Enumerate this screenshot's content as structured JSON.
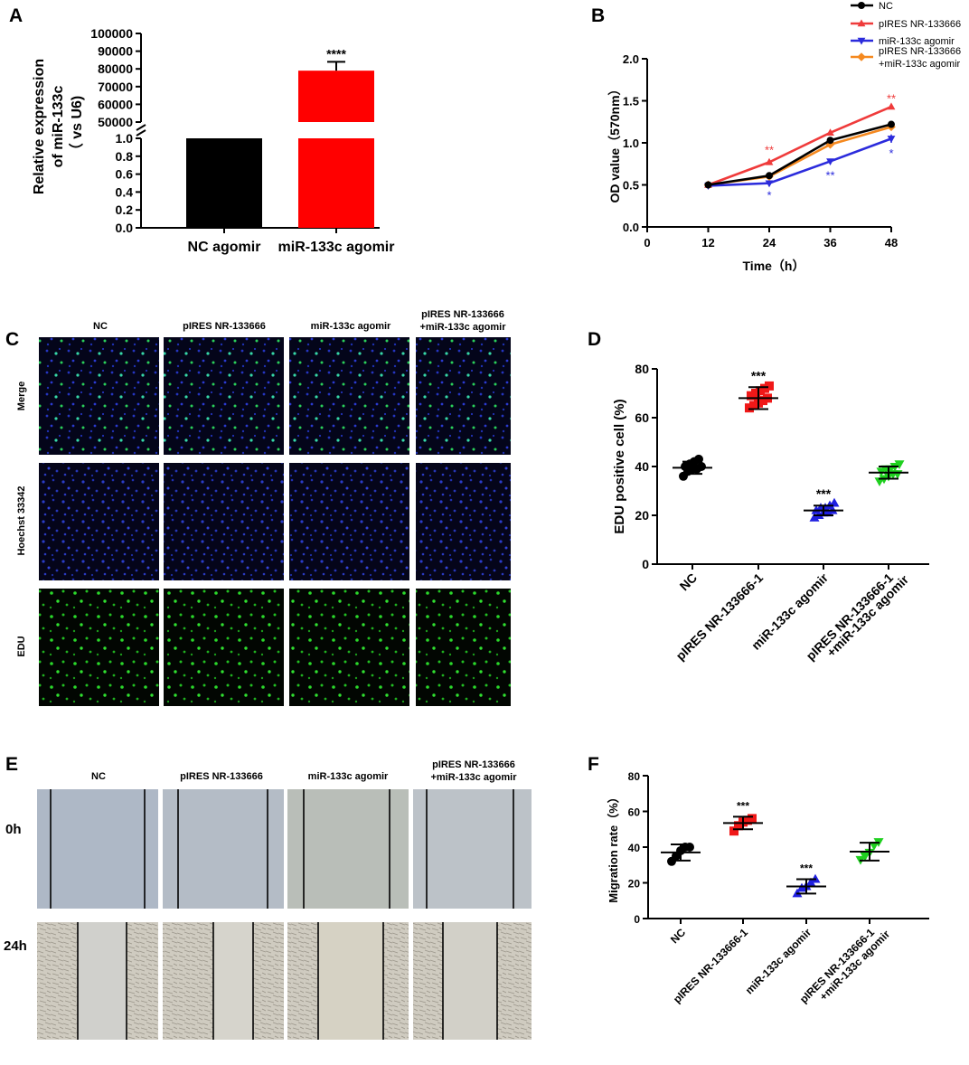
{
  "panel_letters": {
    "a": "A",
    "b": "B",
    "c": "C",
    "d": "D",
    "e": "E",
    "f": "F"
  },
  "colors": {
    "nc": "#000000",
    "pires": "#ef3b3b",
    "agomir": "#2b2bdc",
    "combo": "#f5891f",
    "scatter_nc": "#000000",
    "scatter_pires": "#f01818",
    "scatter_agomir": "#1f1fe0",
    "scatter_combo": "#1fd01f",
    "bar_nc": "#000000",
    "bar_agomir": "#ff0000"
  },
  "chart_data": [
    {
      "id": "A",
      "type": "bar",
      "ylabel_lines": [
        "Relative expression",
        "of miR-133c",
        "（ vs U6)"
      ],
      "categories": [
        "NC agomir",
        "miR-133c agomir"
      ],
      "values": [
        1.0,
        79000
      ],
      "errors": [
        0,
        5000
      ],
      "axis_break": {
        "lower_range": [
          0,
          1.0
        ],
        "upper_range": [
          50000,
          100000
        ]
      },
      "lower_ticks": [
        "0.0",
        "0.2",
        "0.4",
        "0.6",
        "0.8",
        "1.0"
      ],
      "upper_ticks": [
        "50000",
        "60000",
        "70000",
        "80000",
        "90000",
        "100000"
      ],
      "annotations": [
        {
          "category": "miR-133c agomir",
          "text": "****"
        }
      ]
    },
    {
      "id": "B",
      "type": "line",
      "xlabel": "Time（h）",
      "ylabel": "OD value（570nm）",
      "x": [
        12,
        24,
        36,
        48
      ],
      "xlim": [
        0,
        48
      ],
      "ylim": [
        0,
        2.0
      ],
      "xticks": [
        "0",
        "12",
        "24",
        "36",
        "48"
      ],
      "yticks": [
        "0.0",
        "0.5",
        "1.0",
        "1.5",
        "2.0"
      ],
      "series": [
        {
          "name": "NC",
          "marker": "circle",
          "values": [
            0.5,
            0.61,
            1.03,
            1.22
          ],
          "errors": [
            0.01,
            0.01,
            0.02,
            0.02
          ]
        },
        {
          "name": "pIRES NR-133666",
          "marker": "triangle-up",
          "values": [
            0.5,
            0.77,
            1.12,
            1.43
          ],
          "errors": [
            0.01,
            0.01,
            0.02,
            0.02
          ]
        },
        {
          "name": "miR-133c agomir",
          "marker": "triangle-down",
          "values": [
            0.49,
            0.52,
            0.78,
            1.05
          ],
          "errors": [
            0.01,
            0.01,
            0.02,
            0.05
          ]
        },
        {
          "name_lines": [
            "pIRES NR-133666",
            "+miR-133c agomir"
          ],
          "marker": "diamond",
          "values": [
            0.5,
            0.6,
            0.98,
            1.19
          ],
          "errors": [
            0.01,
            0.01,
            0.02,
            0.02
          ]
        }
      ],
      "annotations": [
        {
          "x": 24,
          "y": 0.92,
          "text": "**",
          "series": 1
        },
        {
          "x": 48,
          "y": 1.53,
          "text": "**",
          "series": 1
        },
        {
          "x": 24,
          "y": 0.38,
          "text": "*",
          "series": 2
        },
        {
          "x": 36,
          "y": 0.62,
          "text": "**",
          "series": 2
        },
        {
          "x": 48,
          "y": 0.88,
          "text": "*",
          "series": 2
        }
      ]
    },
    {
      "id": "D",
      "type": "scatter",
      "ylabel": "EDU positive cell (%)",
      "categories": [
        "NC",
        "pIRES NR-133666-1",
        "miR-133c agomir",
        "pIRES NR-133666-1\n+miR-133c agomir"
      ],
      "ylim": [
        0,
        80
      ],
      "yticks": [
        "0",
        "20",
        "40",
        "60",
        "80"
      ],
      "groups": [
        {
          "marker": "circle",
          "mean": 39.5,
          "sd": 2.5,
          "points": [
            36,
            38,
            39,
            39,
            40,
            40,
            41,
            42,
            43
          ]
        },
        {
          "marker": "square",
          "mean": 68,
          "sd": 4.5,
          "points": [
            64,
            65,
            66,
            67,
            68,
            69,
            70,
            71,
            72,
            73
          ]
        },
        {
          "marker": "triangle-up",
          "mean": 22,
          "sd": 2,
          "points": [
            19,
            20,
            21,
            21,
            22,
            22,
            23,
            23,
            24,
            25
          ]
        },
        {
          "marker": "triangle-down",
          "mean": 37.5,
          "sd": 2.5,
          "points": [
            34,
            35,
            36,
            37,
            37,
            38,
            39,
            39,
            40,
            41
          ]
        }
      ],
      "annotations": [
        {
          "group": 1,
          "text": "***"
        },
        {
          "group": 2,
          "text": "***"
        }
      ]
    },
    {
      "id": "F",
      "type": "scatter",
      "ylabel": "Migration rate（%）",
      "categories": [
        "NC",
        "pIRES NR-133666-1",
        "miR-133c agomir",
        "pIRES NR-133666-1\n+miR-133c agomir"
      ],
      "ylim": [
        0,
        80
      ],
      "yticks": [
        "0",
        "20",
        "40",
        "60",
        "80"
      ],
      "groups": [
        {
          "marker": "circle",
          "mean": 37,
          "sd": 4.5,
          "points": [
            32,
            35,
            38,
            40,
            40
          ]
        },
        {
          "marker": "square",
          "mean": 53.5,
          "sd": 3.5,
          "points": [
            49,
            52,
            54,
            55,
            56
          ]
        },
        {
          "marker": "triangle-up",
          "mean": 18,
          "sd": 4,
          "points": [
            14,
            17,
            18,
            20,
            22
          ]
        },
        {
          "marker": "triangle-down",
          "mean": 37.5,
          "sd": 5,
          "points": [
            33,
            35,
            37,
            41,
            43
          ]
        }
      ],
      "annotations": [
        {
          "group": 1,
          "text": "***"
        },
        {
          "group": 2,
          "text": "***"
        }
      ]
    }
  ],
  "panel_c": {
    "columns": [
      "NC",
      "pIRES NR-133666",
      "miR-133c agomir"
    ],
    "column4_lines": [
      "pIRES NR-133666",
      "+miR-133c agomir"
    ],
    "rows": [
      "Merge",
      "Hoechst 33342",
      "EDU"
    ]
  },
  "panel_e": {
    "columns": [
      "NC",
      "pIRES NR-133666",
      "miR-133c agomir"
    ],
    "column4_lines": [
      "pIRES NR-133666",
      "+miR-133c agomir"
    ],
    "rows": [
      "0h",
      "24h"
    ]
  }
}
